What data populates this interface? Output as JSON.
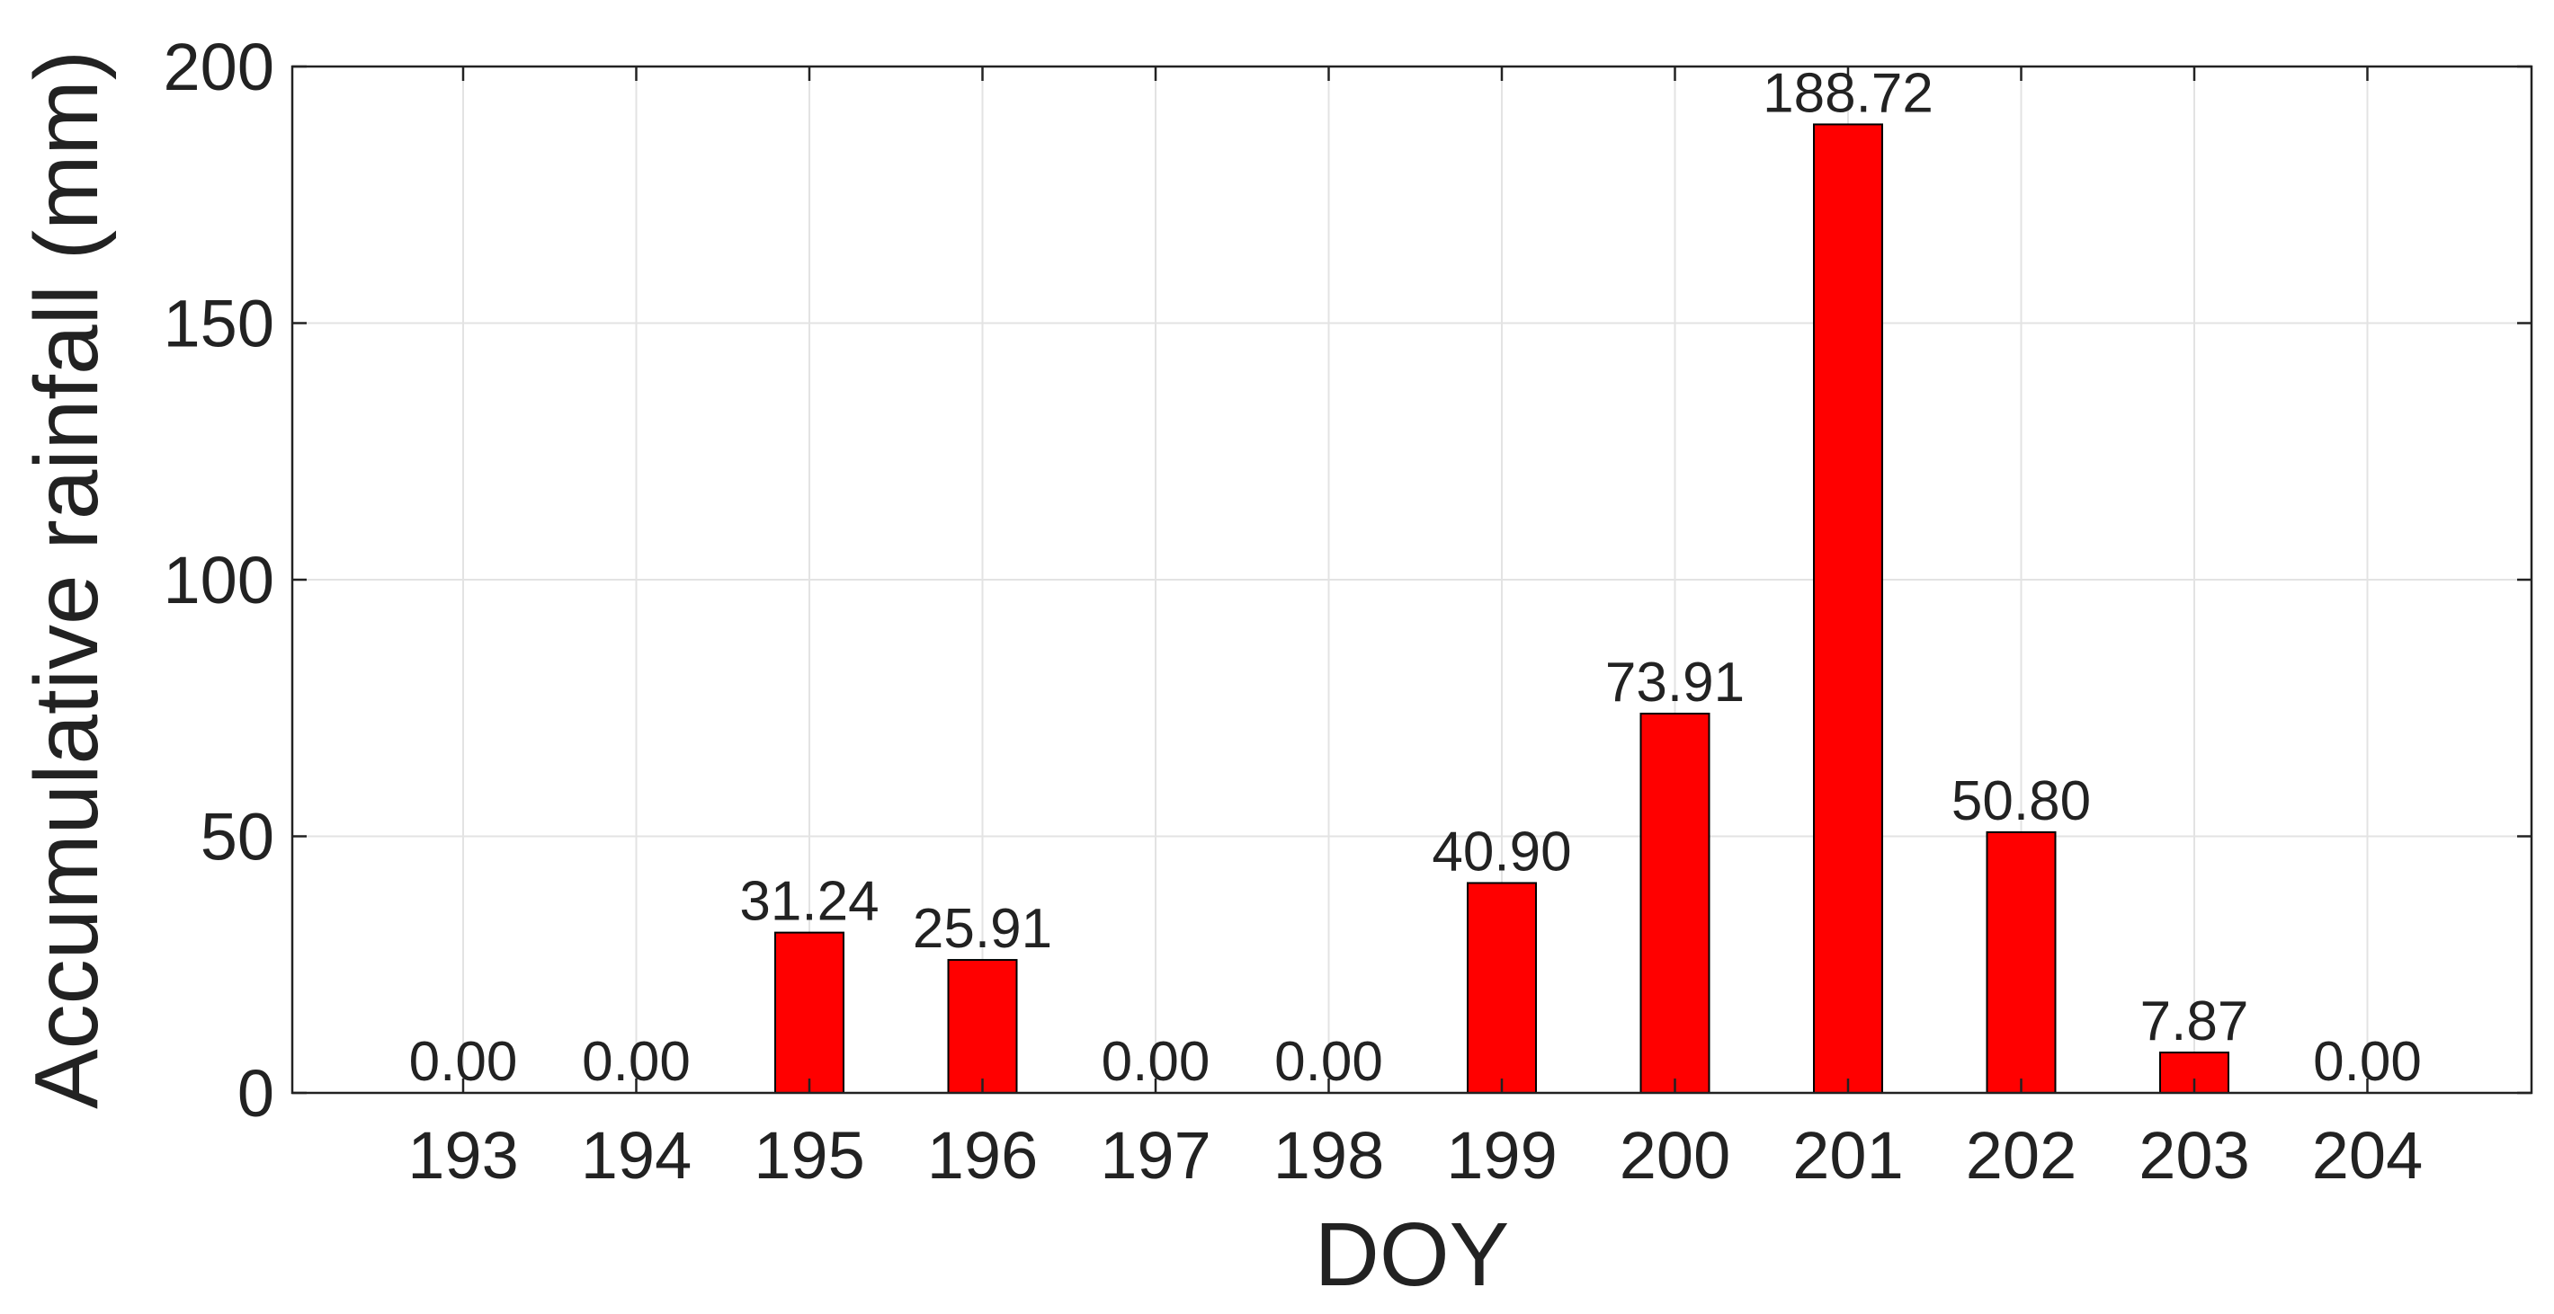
{
  "chart_data": {
    "type": "bar",
    "title": "",
    "xlabel": "DOY",
    "ylabel": "Accumulative rainfall (mm)",
    "categories": [
      "193",
      "194",
      "195",
      "196",
      "197",
      "198",
      "199",
      "200",
      "201",
      "202",
      "203",
      "204"
    ],
    "values": [
      0.0,
      0.0,
      31.24,
      25.91,
      0.0,
      0.0,
      40.9,
      73.91,
      188.72,
      50.8,
      7.87,
      0.0
    ],
    "value_labels": [
      "0.00",
      "0.00",
      "31.24",
      "25.91",
      "0.00",
      "0.00",
      "40.90",
      "73.91",
      "188.72",
      "50.80",
      "7.87",
      "0.00"
    ],
    "ylim": [
      0,
      200
    ],
    "yticks": [
      0,
      50,
      100,
      150,
      200
    ],
    "grid": true,
    "legend": "none",
    "bar_color": "#ff0000",
    "bar_edge_color": "#000000",
    "grid_color": "#e3e3e3",
    "axis_color": "#222222"
  }
}
